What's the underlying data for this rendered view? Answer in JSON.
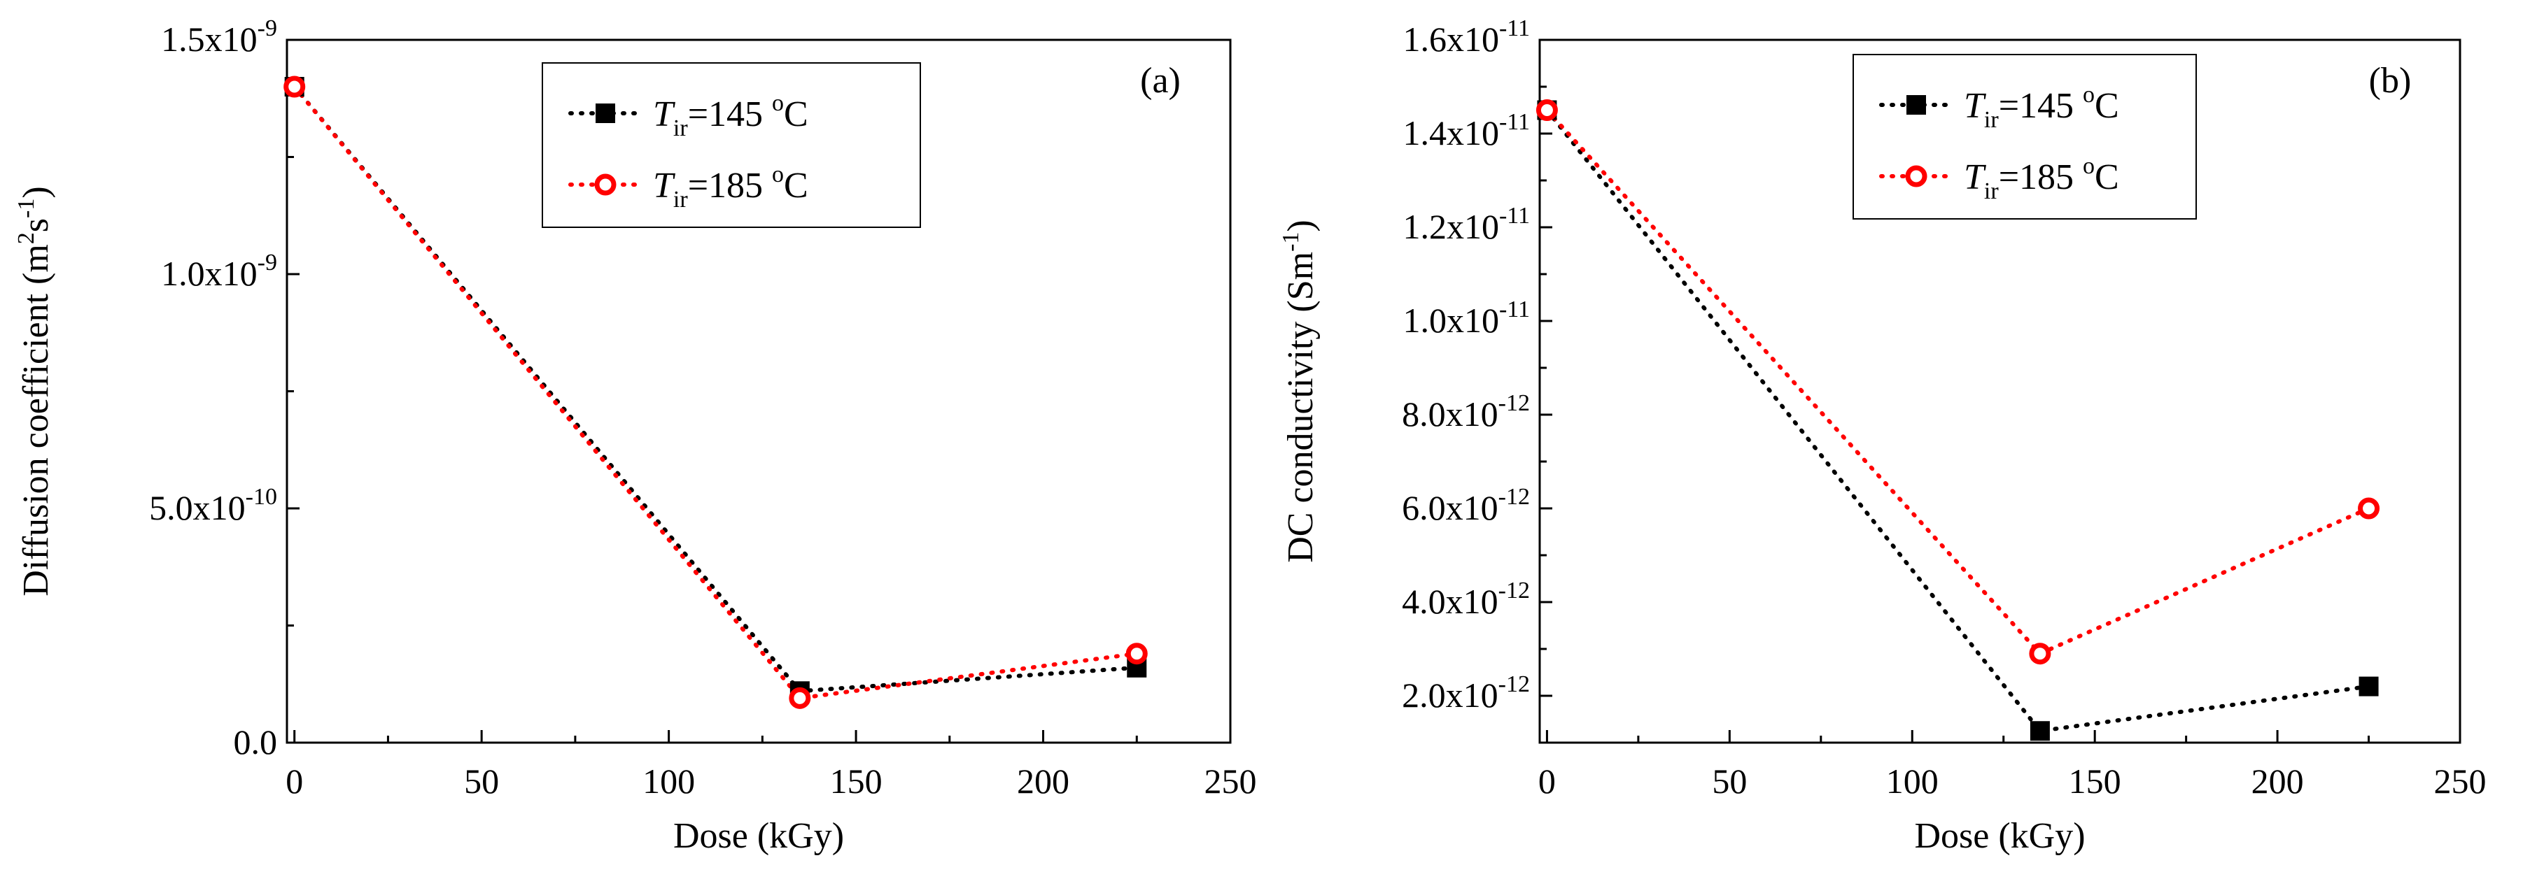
{
  "chart_data": [
    {
      "type": "line",
      "panel_label": "(a)",
      "xlabel": "Dose (kGy)",
      "ylabel": {
        "main": "Diffusion coefficient (m",
        "sup1": "2",
        "mid": "s",
        "sup2": "-1",
        "end": ")"
      },
      "xlim": [
        -2,
        250
      ],
      "ylim": [
        0,
        1.5e-09
      ],
      "xticks": [
        0,
        50,
        100,
        150,
        200,
        250
      ],
      "xtick_labels": [
        "0",
        "50",
        "100",
        "150",
        "200",
        "250"
      ],
      "yticks": [
        0,
        5e-10,
        1e-09,
        1.5e-09
      ],
      "ytick_labels": [
        {
          "mant": "0.0",
          "exp": ""
        },
        {
          "mant": "5.0x10",
          "exp": "-10"
        },
        {
          "mant": "1.0x10",
          "exp": "-9"
        },
        {
          "mant": "1.5x10",
          "exp": "-9"
        }
      ],
      "legend": {
        "position": "top-center"
      },
      "series": [
        {
          "name": "Tir=145 oC",
          "label": {
            "T": "T",
            "sub": "ir",
            "eq": "=145 ",
            "deg": "o",
            "unit": "C"
          },
          "color": "#000000",
          "marker": "square-filled",
          "x": [
            0,
            135,
            225
          ],
          "y": [
            1.4e-09,
            1.1e-10,
            1.6e-10
          ]
        },
        {
          "name": "Tir=185 oC",
          "label": {
            "T": "T",
            "sub": "ir",
            "eq": "=185 ",
            "deg": "o",
            "unit": "C"
          },
          "color": "#ff0000",
          "marker": "circle-open",
          "x": [
            0,
            135,
            225
          ],
          "y": [
            1.4e-09,
            9.5e-11,
            1.9e-10
          ]
        }
      ]
    },
    {
      "type": "line",
      "panel_label": "(b)",
      "xlabel": "Dose (kGy)",
      "ylabel": {
        "main": "DC conductivity (Sm",
        "sup1": "-1",
        "mid": "",
        "sup2": "",
        "end": ")"
      },
      "xlim": [
        -2,
        250
      ],
      "ylim": [
        1e-12,
        1.6e-11
      ],
      "xticks": [
        0,
        50,
        100,
        150,
        200,
        250
      ],
      "xtick_labels": [
        "0",
        "50",
        "100",
        "150",
        "200",
        "250"
      ],
      "yticks": [
        2e-12,
        4e-12,
        6e-12,
        8e-12,
        1e-11,
        1.2e-11,
        1.4e-11,
        1.6e-11
      ],
      "ytick_labels": [
        {
          "mant": "2.0x10",
          "exp": "-12"
        },
        {
          "mant": "4.0x10",
          "exp": "-12"
        },
        {
          "mant": "6.0x10",
          "exp": "-12"
        },
        {
          "mant": "8.0x10",
          "exp": "-12"
        },
        {
          "mant": "1.0x10",
          "exp": "-11"
        },
        {
          "mant": "1.2x10",
          "exp": "-11"
        },
        {
          "mant": "1.4x10",
          "exp": "-11"
        },
        {
          "mant": "1.6x10",
          "exp": "-11"
        }
      ],
      "legend": {
        "position": "top-center"
      },
      "series": [
        {
          "name": "Tir=145 oC",
          "label": {
            "T": "T",
            "sub": "ir",
            "eq": "=145 ",
            "deg": "o",
            "unit": "C"
          },
          "color": "#000000",
          "marker": "square-filled",
          "x": [
            0,
            135,
            225
          ],
          "y": [
            1.45e-11,
            1.25e-12,
            2.2e-12
          ]
        },
        {
          "name": "Tir=185 oC",
          "label": {
            "T": "T",
            "sub": "ir",
            "eq": "=185 ",
            "deg": "o",
            "unit": "C"
          },
          "color": "#ff0000",
          "marker": "circle-open",
          "x": [
            0,
            135,
            225
          ],
          "y": [
            1.45e-11,
            2.9e-12,
            6e-12
          ]
        }
      ]
    }
  ]
}
